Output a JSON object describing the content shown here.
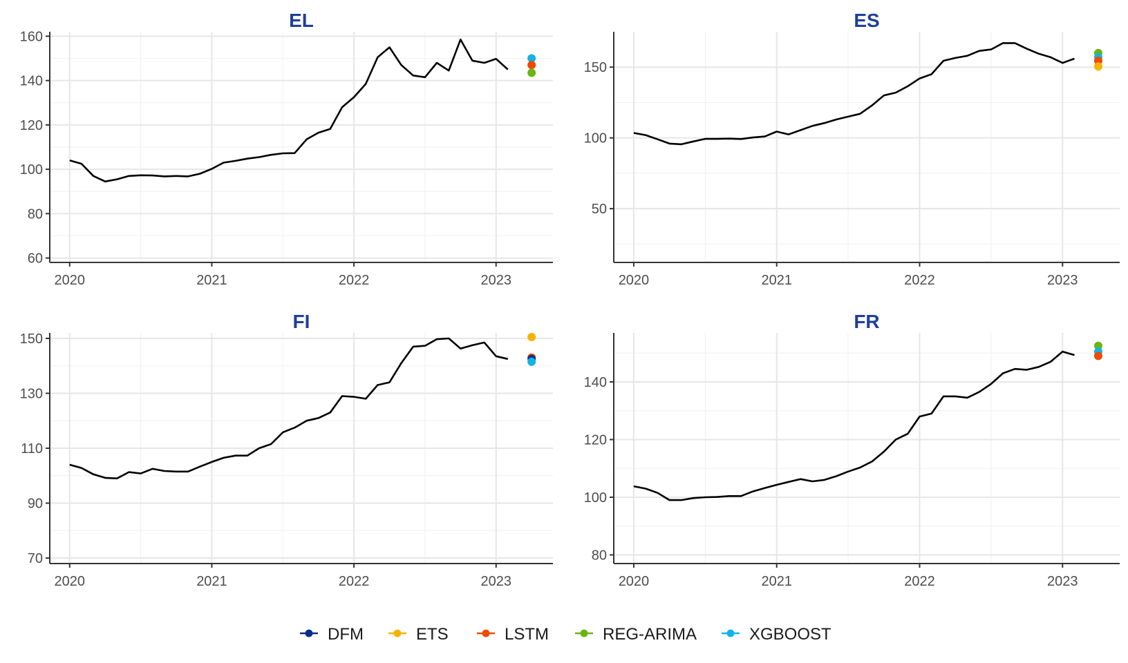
{
  "chart_data": [
    {
      "type": "line",
      "title": "EL",
      "xlabel": "",
      "ylabel": "",
      "xlim": [
        2019.86,
        2023.4
      ],
      "ylim": [
        58,
        162
      ],
      "grid": true,
      "x_ticks": [
        2020,
        2021,
        2022,
        2023
      ],
      "x_tick_labels": [
        "2020",
        "2021",
        "2022",
        "2023"
      ],
      "y_ticks": [
        60,
        80,
        100,
        120,
        140,
        160
      ],
      "y_tick_labels": [
        "60",
        "80",
        "100",
        "120",
        "140",
        "160"
      ],
      "series": [
        {
          "x": [
            2020.0,
            2020.083,
            2020.167,
            2020.25,
            2020.333,
            2020.417,
            2020.5,
            2020.583,
            2020.667,
            2020.75,
            2020.833,
            2020.917,
            2021.0,
            2021.083,
            2021.167,
            2021.25,
            2021.333,
            2021.417,
            2021.5,
            2021.583,
            2021.667,
            2021.75,
            2021.833,
            2021.917,
            2022.0,
            2022.083,
            2022.167,
            2022.25,
            2022.333,
            2022.417,
            2022.5,
            2022.583,
            2022.667,
            2022.75,
            2022.833,
            2022.917,
            2023.0,
            2023.083
          ],
          "values": [
            104,
            102.5,
            97,
            94.5,
            95.5,
            97,
            97.3,
            97.2,
            96.8,
            97,
            96.8,
            98,
            100.2,
            103,
            103.8,
            104.8,
            105.5,
            106.5,
            107.2,
            107.3,
            113.5,
            116.5,
            118.2,
            128,
            132.5,
            138.5,
            150.5,
            155,
            147,
            142.3,
            141.5,
            148,
            144.5,
            158.5,
            149,
            148,
            149.8,
            145
          ]
        }
      ],
      "forecasts": [
        {
          "name": "XGBOOST",
          "x": 2023.25,
          "value": 150
        },
        {
          "name": "LSTM",
          "x": 2023.25,
          "value": 147
        },
        {
          "name": "REG-ARIMA",
          "x": 2023.25,
          "value": 143.5
        }
      ]
    },
    {
      "type": "line",
      "title": "ES",
      "xlabel": "",
      "ylabel": "",
      "xlim": [
        2019.86,
        2023.4
      ],
      "ylim": [
        12,
        175
      ],
      "grid": true,
      "x_ticks": [
        2020,
        2021,
        2022,
        2023
      ],
      "x_tick_labels": [
        "2020",
        "2021",
        "2022",
        "2023"
      ],
      "y_ticks": [
        50,
        100,
        150
      ],
      "y_tick_labels": [
        "50",
        "100",
        "150"
      ],
      "series": [
        {
          "x": [
            2020.0,
            2020.083,
            2020.167,
            2020.25,
            2020.333,
            2020.417,
            2020.5,
            2020.583,
            2020.667,
            2020.75,
            2020.833,
            2020.917,
            2021.0,
            2021.083,
            2021.167,
            2021.25,
            2021.333,
            2021.417,
            2021.5,
            2021.583,
            2021.667,
            2021.75,
            2021.833,
            2021.917,
            2022.0,
            2022.083,
            2022.167,
            2022.25,
            2022.333,
            2022.417,
            2022.5,
            2022.583,
            2022.667,
            2022.75,
            2022.833,
            2022.917,
            2023.0,
            2023.083
          ],
          "values": [
            103.5,
            102,
            99,
            96,
            95.5,
            97.5,
            99.3,
            99.3,
            99.5,
            99.2,
            100.3,
            101,
            104.5,
            102.5,
            105.5,
            108.5,
            110.5,
            113,
            115,
            117,
            123,
            130,
            132,
            136.5,
            142,
            145,
            154.5,
            156.5,
            158,
            161.5,
            162.5,
            167,
            167,
            163,
            159.5,
            157,
            153,
            156
          ]
        }
      ],
      "forecasts": [
        {
          "name": "REG-ARIMA",
          "x": 2023.25,
          "value": 160
        },
        {
          "name": "XGBOOST",
          "x": 2023.25,
          "value": 157
        },
        {
          "name": "LSTM",
          "x": 2023.25,
          "value": 154.5
        },
        {
          "name": "ETS",
          "x": 2023.25,
          "value": 150.5
        }
      ]
    },
    {
      "type": "line",
      "title": "FI",
      "xlabel": "",
      "ylabel": "",
      "xlim": [
        2019.86,
        2023.4
      ],
      "ylim": [
        68,
        152
      ],
      "grid": true,
      "x_ticks": [
        2020,
        2021,
        2022,
        2023
      ],
      "x_tick_labels": [
        "2020",
        "2021",
        "2022",
        "2023"
      ],
      "y_ticks": [
        70,
        90,
        110,
        130,
        150
      ],
      "y_tick_labels": [
        "70",
        "90",
        "110",
        "130",
        "150"
      ],
      "series": [
        {
          "x": [
            2020.0,
            2020.083,
            2020.167,
            2020.25,
            2020.333,
            2020.417,
            2020.5,
            2020.583,
            2020.667,
            2020.75,
            2020.833,
            2020.917,
            2021.0,
            2021.083,
            2021.167,
            2021.25,
            2021.333,
            2021.417,
            2021.5,
            2021.583,
            2021.667,
            2021.75,
            2021.833,
            2021.917,
            2022.0,
            2022.083,
            2022.167,
            2022.25,
            2022.333,
            2022.417,
            2022.5,
            2022.583,
            2022.667,
            2022.75,
            2022.833,
            2022.917,
            2023.0,
            2023.083
          ],
          "values": [
            104,
            102.8,
            100.5,
            99.2,
            99,
            101.3,
            100.8,
            102.5,
            101.7,
            101.5,
            101.5,
            103.3,
            105,
            106.5,
            107.3,
            107.3,
            110,
            111.5,
            115.8,
            117.5,
            120,
            121,
            123,
            129,
            128.7,
            128,
            133,
            134,
            141,
            147,
            147.3,
            149.7,
            150,
            146.3,
            147.5,
            148.5,
            143.5,
            142.5
          ]
        }
      ],
      "forecasts": [
        {
          "name": "ETS",
          "x": 2023.25,
          "value": 150.5
        },
        {
          "name": "LSTM",
          "x": 2023.25,
          "value": 143
        },
        {
          "name": "DFM",
          "x": 2023.25,
          "value": 142.5
        },
        {
          "name": "XGBOOST",
          "x": 2023.25,
          "value": 141.5
        }
      ]
    },
    {
      "type": "line",
      "title": "FR",
      "xlabel": "",
      "ylabel": "",
      "xlim": [
        2019.86,
        2023.4
      ],
      "ylim": [
        77,
        157
      ],
      "grid": true,
      "x_ticks": [
        2020,
        2021,
        2022,
        2023
      ],
      "x_tick_labels": [
        "2020",
        "2021",
        "2022",
        "2023"
      ],
      "y_ticks": [
        80,
        100,
        120,
        140
      ],
      "y_tick_labels": [
        "80",
        "100",
        "120",
        "140"
      ],
      "series": [
        {
          "x": [
            2020.0,
            2020.083,
            2020.167,
            2020.25,
            2020.333,
            2020.417,
            2020.5,
            2020.583,
            2020.667,
            2020.75,
            2020.833,
            2020.917,
            2021.0,
            2021.083,
            2021.167,
            2021.25,
            2021.333,
            2021.417,
            2021.5,
            2021.583,
            2021.667,
            2021.75,
            2021.833,
            2021.917,
            2022.0,
            2022.083,
            2022.167,
            2022.25,
            2022.333,
            2022.417,
            2022.5,
            2022.583,
            2022.667,
            2022.75,
            2022.833,
            2022.917,
            2023.0,
            2023.083
          ],
          "values": [
            103.8,
            103,
            101.5,
            99,
            99,
            99.7,
            100,
            100.1,
            100.4,
            100.4,
            102,
            103.2,
            104.3,
            105.3,
            106.3,
            105.5,
            106,
            107.3,
            108.9,
            110.3,
            112.4,
            115.8,
            120,
            122,
            128,
            129,
            135,
            135,
            134.5,
            136.5,
            139.3,
            143,
            144.5,
            144.2,
            145.2,
            147,
            150.5,
            149.3
          ]
        }
      ],
      "forecasts": [
        {
          "name": "REG-ARIMA",
          "x": 2023.25,
          "value": 152.5
        },
        {
          "name": "XGBOOST",
          "x": 2023.25,
          "value": 150.5
        },
        {
          "name": "LSTM",
          "x": 2023.25,
          "value": 149
        }
      ]
    }
  ],
  "legend": {
    "position": "bottom",
    "items": [
      {
        "label": "DFM",
        "color": "#0b2e8a"
      },
      {
        "label": "ETS",
        "color": "#f5b400"
      },
      {
        "label": "LSTM",
        "color": "#f04a00"
      },
      {
        "label": "REG-ARIMA",
        "color": "#6ab514"
      },
      {
        "label": "XGBOOST",
        "color": "#12b3e6"
      }
    ]
  },
  "colors": {
    "series_line": "#000000",
    "title": "#1f3f99",
    "grid": "#ebebeb",
    "axis": "#333333"
  }
}
